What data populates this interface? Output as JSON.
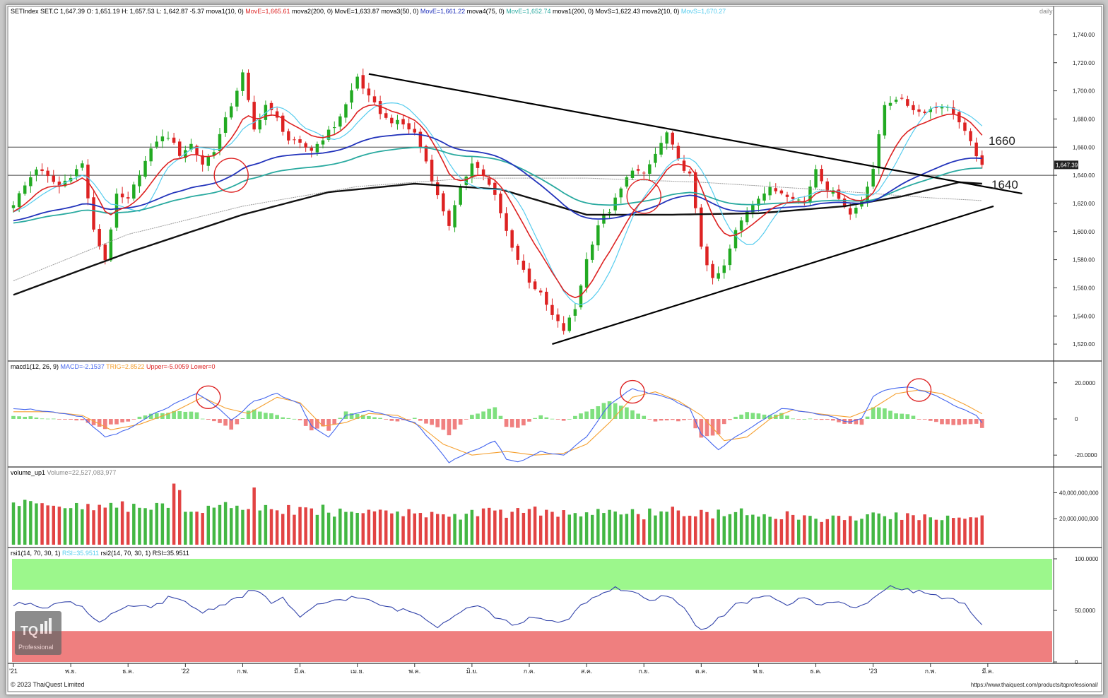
{
  "colors": {
    "up": "#22aa22",
    "down": "#dd2222",
    "ma10": "#dd2222",
    "ma50": "#2233bb",
    "ma75": "#2aaaa0",
    "ma200": "#111111",
    "ma200b": "#9a9a9a",
    "ma10b": "#55ccee",
    "macd": "#4466ee",
    "trigger": "#f5a030",
    "hist_pos": "#7fe07f",
    "hist_neg": "#f08080",
    "rsi": "#3344aa",
    "rsi_over": "#9cf78c",
    "rsi_under": "#ef7f7f",
    "guide": "#555555"
  },
  "header": {
    "parts": [
      {
        "text": "SETIndex SET.C 1,647.39 O: 1,651.19 H: 1,657.53 L: 1,642.87 -5.37 mova1(10, 0) ",
        "color": "#000000"
      },
      {
        "text": "MovE=1,665.61 ",
        "color": "#dd2222"
      },
      {
        "text": "mova2(200, 0) MovE=1,633.87 mova3(50, 0) ",
        "color": "#000000"
      },
      {
        "text": "MovE=1,661.22 ",
        "color": "#2233bb"
      },
      {
        "text": "mova4(75, 0) ",
        "color": "#000000"
      },
      {
        "text": "MovE=1,652.74 ",
        "color": "#2aaaa0"
      },
      {
        "text": "mova1(200, 0) MovS=1,622.43 mova2(10, 0) ",
        "color": "#000000"
      },
      {
        "text": "MovS=1,670.27",
        "color": "#55ccee"
      }
    ],
    "period": "daily"
  },
  "macd_header": {
    "parts": [
      {
        "text": "macd1(12, 26, 9) ",
        "color": "#000000"
      },
      {
        "text": "MACD=-2.1537 ",
        "color": "#4466ee"
      },
      {
        "text": "TRIG=2.8522 ",
        "color": "#f5a030"
      },
      {
        "text": "Upper=-5.0059 ",
        "color": "#dd2222"
      },
      {
        "text": "Lower=0",
        "color": "#dd2222"
      }
    ]
  },
  "volume_header": {
    "parts": [
      {
        "text": "volume_up1 ",
        "color": "#000000"
      },
      {
        "text": "Volume=22,527,083,977",
        "color": "#888888"
      }
    ]
  },
  "rsi_header": {
    "parts": [
      {
        "text": "rsi1(14, 70, 30, 1) ",
        "color": "#000000"
      },
      {
        "text": "RSI=35.9511 ",
        "color": "#55ccee"
      },
      {
        "text": "rsi2(14, 70, 30, 1) RSI=35.9511",
        "color": "#000000"
      }
    ]
  },
  "annotations": {
    "level_1660": "1660",
    "level_1640": "1640",
    "last_price": "1,647.39"
  },
  "watermark": {
    "logo": "TQ",
    "label": "Professional"
  },
  "footer": {
    "copyright": "© 2023 ThaiQuest Limited",
    "url": "https://www.thaiquest.com/products/tqprofessional/"
  },
  "chart_data": [
    {
      "type": "line",
      "title": "SETIndex",
      "period": "daily",
      "ylim": [
        1510,
        1750
      ],
      "y_ticks": [
        "1,740.00",
        "1,720.00",
        "1,700.00",
        "1,680.00",
        "1,660.00",
        "1,640.00",
        "1,620.00",
        "1,600.00",
        "1,580.00",
        "1,560.00",
        "1,540.00",
        "1,520.00"
      ],
      "x_ticks": [
        "'21",
        "พ.ย.",
        "ธ.ค.",
        "'22",
        "ก.พ.",
        "มี.ค.",
        "เม.ย.",
        "พ.ค.",
        "มิ.ย.",
        "ก.ค.",
        "ส.ค.",
        "ก.ย.",
        "ต.ค.",
        "พ.ย.",
        "ธ.ค.",
        "'23",
        "ก.พ.",
        "มี.ค."
      ],
      "x_index": [
        0,
        10,
        20,
        30,
        40,
        50,
        60,
        70,
        80,
        90,
        100,
        110,
        120,
        130,
        140,
        150,
        160,
        170
      ],
      "x_range": [
        0,
        180
      ],
      "close_anchors": [
        [
          0,
          1620
        ],
        [
          4,
          1645
        ],
        [
          8,
          1632
        ],
        [
          12,
          1648
        ],
        [
          14,
          1600
        ],
        [
          16,
          1580
        ],
        [
          18,
          1625
        ],
        [
          20,
          1622
        ],
        [
          22,
          1642
        ],
        [
          25,
          1665
        ],
        [
          27,
          1668
        ],
        [
          29,
          1655
        ],
        [
          31,
          1662
        ],
        [
          33,
          1648
        ],
        [
          35,
          1658
        ],
        [
          38,
          1690
        ],
        [
          40,
          1712
        ],
        [
          42,
          1672
        ],
        [
          44,
          1690
        ],
        [
          46,
          1680
        ],
        [
          48,
          1665
        ],
        [
          52,
          1658
        ],
        [
          56,
          1675
        ],
        [
          58,
          1690
        ],
        [
          60,
          1710
        ],
        [
          62,
          1695
        ],
        [
          65,
          1680
        ],
        [
          68,
          1676
        ],
        [
          70,
          1670
        ],
        [
          72,
          1650
        ],
        [
          74,
          1625
        ],
        [
          76,
          1605
        ],
        [
          78,
          1630
        ],
        [
          80,
          1650
        ],
        [
          82,
          1640
        ],
        [
          84,
          1625
        ],
        [
          86,
          1600
        ],
        [
          88,
          1580
        ],
        [
          90,
          1565
        ],
        [
          92,
          1555
        ],
        [
          94,
          1540
        ],
        [
          96,
          1530
        ],
        [
          98,
          1545
        ],
        [
          100,
          1580
        ],
        [
          102,
          1605
        ],
        [
          104,
          1615
        ],
        [
          106,
          1630
        ],
        [
          108,
          1645
        ],
        [
          110,
          1640
        ],
        [
          112,
          1655
        ],
        [
          114,
          1670
        ],
        [
          116,
          1650
        ],
        [
          118,
          1640
        ],
        [
          120,
          1590
        ],
        [
          122,
          1565
        ],
        [
          124,
          1575
        ],
        [
          126,
          1600
        ],
        [
          128,
          1615
        ],
        [
          130,
          1625
        ],
        [
          132,
          1630
        ],
        [
          134,
          1628
        ],
        [
          136,
          1625
        ],
        [
          138,
          1620
        ],
        [
          140,
          1645
        ],
        [
          142,
          1630
        ],
        [
          144,
          1625
        ],
        [
          146,
          1612
        ],
        [
          148,
          1622
        ],
        [
          150,
          1645
        ],
        [
          152,
          1690
        ],
        [
          154,
          1695
        ],
        [
          156,
          1690
        ],
        [
          158,
          1685
        ],
        [
          160,
          1687
        ],
        [
          162,
          1690
        ],
        [
          164,
          1685
        ],
        [
          166,
          1670
        ],
        [
          168,
          1655
        ],
        [
          169,
          1647.39
        ]
      ],
      "moving_averages": [
        {
          "name": "MovE 10",
          "value": 1665.61,
          "color": "#dd2222"
        },
        {
          "name": "MovE 200",
          "value": 1633.87,
          "color": "#111111"
        },
        {
          "name": "MovE 50",
          "value": 1661.22,
          "color": "#2233bb"
        },
        {
          "name": "MovE 75",
          "value": 1652.74,
          "color": "#2aaaa0"
        },
        {
          "name": "MovS 200",
          "value": 1622.43,
          "color": "#9a9a9a"
        },
        {
          "name": "MovS 10",
          "value": 1670.27,
          "color": "#55ccee"
        }
      ],
      "ma200_anchors": [
        [
          0,
          1555
        ],
        [
          20,
          1585
        ],
        [
          40,
          1612
        ],
        [
          55,
          1628
        ],
        [
          70,
          1634
        ],
        [
          85,
          1630
        ],
        [
          95,
          1618
        ],
        [
          100,
          1612
        ],
        [
          115,
          1612
        ],
        [
          130,
          1613
        ],
        [
          145,
          1618
        ],
        [
          155,
          1625
        ],
        [
          165,
          1635
        ],
        [
          169,
          1634
        ]
      ],
      "ma200s_anchors": [
        [
          0,
          1565
        ],
        [
          20,
          1598
        ],
        [
          40,
          1618
        ],
        [
          60,
          1632
        ],
        [
          80,
          1638
        ],
        [
          100,
          1638
        ],
        [
          120,
          1635
        ],
        [
          140,
          1630
        ],
        [
          160,
          1624
        ],
        [
          169,
          1622
        ]
      ],
      "horizontal_levels": [
        1660,
        1640
      ],
      "trendlines": [
        {
          "name": "resistance",
          "from": [
            62,
            1712
          ],
          "to": [
            176,
            1627
          ]
        },
        {
          "name": "support",
          "from": [
            94,
            1520
          ],
          "to": [
            171,
            1618
          ]
        }
      ],
      "circles": [
        [
          38,
          1640
        ],
        [
          110,
          1625
        ]
      ]
    },
    {
      "type": "line",
      "title": "macd1(12, 26, 9)",
      "ylim": [
        -25,
        25
      ],
      "y_ticks": [
        "20.0000",
        "0",
        "-20.0000"
      ],
      "macd_anchors": [
        [
          0,
          6
        ],
        [
          4,
          5
        ],
        [
          8,
          3
        ],
        [
          12,
          1
        ],
        [
          16,
          -10
        ],
        [
          20,
          -6
        ],
        [
          24,
          2
        ],
        [
          28,
          8
        ],
        [
          32,
          14
        ],
        [
          35,
          8
        ],
        [
          38,
          -1
        ],
        [
          42,
          10
        ],
        [
          46,
          14
        ],
        [
          50,
          8
        ],
        [
          52,
          -4
        ],
        [
          55,
          -10
        ],
        [
          58,
          2
        ],
        [
          62,
          5
        ],
        [
          66,
          1
        ],
        [
          70,
          -2
        ],
        [
          73,
          -12
        ],
        [
          76,
          -24
        ],
        [
          80,
          -18
        ],
        [
          84,
          -12
        ],
        [
          86,
          -22
        ],
        [
          88,
          -24
        ],
        [
          92,
          -18
        ],
        [
          96,
          -20
        ],
        [
          100,
          -10
        ],
        [
          104,
          8
        ],
        [
          108,
          17
        ],
        [
          110,
          15
        ],
        [
          114,
          12
        ],
        [
          118,
          6
        ],
        [
          120,
          -8
        ],
        [
          123,
          -17
        ],
        [
          126,
          -10
        ],
        [
          130,
          -2
        ],
        [
          134,
          6
        ],
        [
          138,
          4
        ],
        [
          142,
          2
        ],
        [
          146,
          -2
        ],
        [
          148,
          0
        ],
        [
          150,
          12
        ],
        [
          152,
          16
        ],
        [
          156,
          18
        ],
        [
          160,
          14
        ],
        [
          164,
          8
        ],
        [
          168,
          2
        ],
        [
          169,
          -2.15
        ]
      ],
      "trig_anchors": [
        [
          0,
          4
        ],
        [
          6,
          4
        ],
        [
          12,
          2
        ],
        [
          17,
          -6
        ],
        [
          22,
          -3
        ],
        [
          28,
          4
        ],
        [
          33,
          12
        ],
        [
          37,
          6
        ],
        [
          41,
          3
        ],
        [
          46,
          12
        ],
        [
          50,
          9
        ],
        [
          54,
          -4
        ],
        [
          58,
          -2
        ],
        [
          62,
          3
        ],
        [
          67,
          2
        ],
        [
          71,
          -4
        ],
        [
          75,
          -14
        ],
        [
          80,
          -20
        ],
        [
          86,
          -18
        ],
        [
          91,
          -20
        ],
        [
          96,
          -19
        ],
        [
          100,
          -14
        ],
        [
          104,
          -2
        ],
        [
          108,
          12
        ],
        [
          112,
          15
        ],
        [
          116,
          10
        ],
        [
          120,
          2
        ],
        [
          124,
          -12
        ],
        [
          128,
          -10
        ],
        [
          132,
          0
        ],
        [
          136,
          5
        ],
        [
          140,
          3
        ],
        [
          146,
          1
        ],
        [
          150,
          6
        ],
        [
          154,
          14
        ],
        [
          158,
          16
        ],
        [
          162,
          14
        ],
        [
          166,
          8
        ],
        [
          169,
          2.85
        ]
      ],
      "circles": [
        [
          34,
          12
        ],
        [
          108,
          15
        ],
        [
          158,
          16
        ]
      ]
    },
    {
      "type": "bar",
      "title": "volume_up1",
      "ylim": [
        0,
        50000000000
      ],
      "y_ticks": [
        "40,000,000,000",
        "20,000,000,000"
      ],
      "last_value": 22527083977
    },
    {
      "type": "line",
      "title": "rsi1(14, 70, 30, 1)",
      "ylim": [
        0,
        100
      ],
      "y_ticks": [
        "100.0000",
        "50.0000",
        "0"
      ],
      "bands": {
        "overbought": 70,
        "oversold": 30
      },
      "rsi_anchors": [
        [
          0,
          55
        ],
        [
          3,
          58
        ],
        [
          6,
          52
        ],
        [
          9,
          60
        ],
        [
          12,
          54
        ],
        [
          15,
          38
        ],
        [
          18,
          48
        ],
        [
          21,
          55
        ],
        [
          24,
          52
        ],
        [
          27,
          62
        ],
        [
          30,
          58
        ],
        [
          33,
          48
        ],
        [
          36,
          55
        ],
        [
          39,
          62
        ],
        [
          42,
          70
        ],
        [
          45,
          58
        ],
        [
          47,
          62
        ],
        [
          50,
          42
        ],
        [
          53,
          55
        ],
        [
          56,
          60
        ],
        [
          60,
          63
        ],
        [
          63,
          57
        ],
        [
          66,
          52
        ],
        [
          70,
          48
        ],
        [
          74,
          35
        ],
        [
          78,
          50
        ],
        [
          81,
          56
        ],
        [
          84,
          44
        ],
        [
          87,
          36
        ],
        [
          90,
          42
        ],
        [
          93,
          40
        ],
        [
          96,
          38
        ],
        [
          99,
          55
        ],
        [
          102,
          65
        ],
        [
          105,
          72
        ],
        [
          108,
          68
        ],
        [
          111,
          58
        ],
        [
          114,
          65
        ],
        [
          117,
          52
        ],
        [
          120,
          30
        ],
        [
          123,
          42
        ],
        [
          126,
          55
        ],
        [
          129,
          60
        ],
        [
          132,
          64
        ],
        [
          135,
          56
        ],
        [
          138,
          62
        ],
        [
          141,
          55
        ],
        [
          144,
          60
        ],
        [
          147,
          52
        ],
        [
          150,
          60
        ],
        [
          153,
          75
        ],
        [
          156,
          70
        ],
        [
          160,
          66
        ],
        [
          164,
          60
        ],
        [
          166,
          55
        ],
        [
          168,
          40
        ],
        [
          169,
          35.95
        ]
      ],
      "circle": null
    }
  ]
}
